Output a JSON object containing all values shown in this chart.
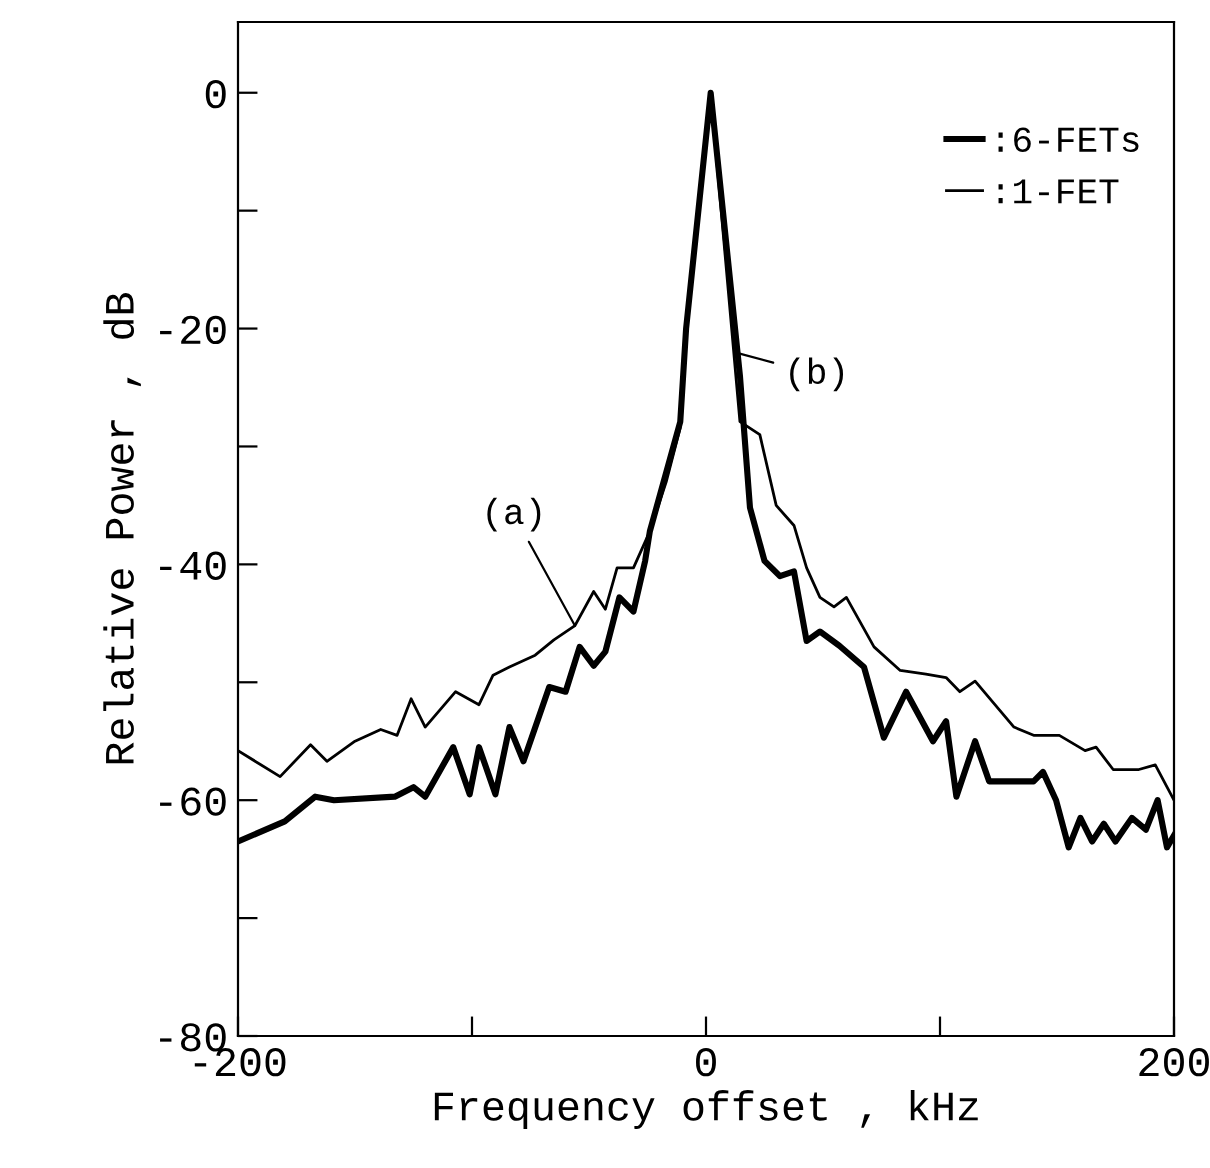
{
  "chart_data": {
    "type": "line",
    "xlabel": "Frequency offset , kHz",
    "ylabel": "Relative Power , dB",
    "xlim": [
      -200,
      200
    ],
    "ylim": [
      -80,
      6
    ],
    "xticks": [
      -200,
      {
        "value": -100,
        "label": null
      },
      0,
      {
        "value": 100,
        "label": null
      },
      200
    ],
    "yticks": [
      -80,
      {
        "value": -70,
        "label": null
      },
      -60,
      {
        "value": -50,
        "label": null
      },
      -40,
      {
        "value": -30,
        "label": null
      },
      -20,
      {
        "value": -10,
        "label": null
      },
      0
    ],
    "grid": false,
    "legend": "top right",
    "marker": "none",
    "line_style": "solid",
    "series": [
      {
        "name": ":6-FETs",
        "color": "#000000",
        "x": [
          -200,
          -180,
          -167,
          -159,
          -133,
          -125,
          -120,
          -108,
          -101,
          -97,
          -90,
          -84,
          -78,
          -67,
          -60,
          -54,
          -48,
          -43,
          -37,
          -31,
          -26,
          -24,
          -11,
          -8.5,
          2,
          14.5,
          18.8,
          25,
          31.6,
          37.6,
          43,
          48.7,
          57,
          67.5,
          76,
          85.5,
          97,
          102.6,
          107,
          115,
          121,
          140,
          144,
          149.6,
          155,
          160,
          165,
          170,
          175,
          182,
          188,
          193,
          197,
          200
        ],
        "values": [
          -63.5,
          -61.8,
          -59.7,
          -60,
          -59.7,
          -58.9,
          -59.7,
          -55.5,
          -59.5,
          -55.5,
          -59.5,
          -53.8,
          -56.7,
          -50.4,
          -50.8,
          -47,
          -48.6,
          -47.4,
          -42.8,
          -44,
          -39.7,
          -37.2,
          -27.9,
          -20,
          0,
          -24,
          -35.2,
          -39.7,
          -41,
          -40.6,
          -46.5,
          -45.7,
          -46.9,
          -48.7,
          -54.7,
          -50.8,
          -55,
          -53.3,
          -59.7,
          -55,
          -58.4,
          -58.4,
          -57.6,
          -60,
          -64,
          -61.5,
          -63.5,
          -62,
          -63.5,
          -61.5,
          -62.5,
          -60,
          -64,
          -63
        ]
      },
      {
        "name": ":1-FET",
        "color": "#000000",
        "x": [
          -200,
          -182,
          -169,
          -162,
          -150,
          -139,
          -132,
          -126,
          -120,
          -107,
          -97,
          -91,
          -84,
          -73,
          -65,
          -56,
          -48,
          -43,
          -38,
          -31,
          -24,
          -17,
          -11,
          -8.5,
          2,
          14.5,
          23,
          30,
          37.6,
          43,
          48.7,
          54.7,
          60,
          71.8,
          83,
          94,
          102.6,
          108.5,
          115,
          131.6,
          140,
          151,
          162,
          166.7,
          174,
          185,
          192,
          200
        ],
        "values": [
          -55.8,
          -58,
          -55.3,
          -56.7,
          -55,
          -54,
          -54.5,
          -51.4,
          -53.8,
          -50.8,
          -51.9,
          -49.4,
          -48.7,
          -47.7,
          -46.4,
          -45.2,
          -42.3,
          -43.8,
          -40.3,
          -40.3,
          -37.2,
          -33,
          -28.4,
          -20,
          0,
          -27.9,
          -29,
          -35,
          -36.7,
          -40.3,
          -42.8,
          -43.6,
          -42.8,
          -47,
          -49,
          -49.3,
          -49.6,
          -50.8,
          -49.9,
          -53.8,
          -54.5,
          -54.5,
          -55.8,
          -55.5,
          -57.4,
          -57.4,
          -57,
          -60
        ]
      }
    ],
    "annotations": [
      {
        "text": "(a)",
        "x": -56,
        "y": -45.2
      },
      {
        "text": "(b)",
        "x": 12,
        "y": -22
      }
    ]
  }
}
